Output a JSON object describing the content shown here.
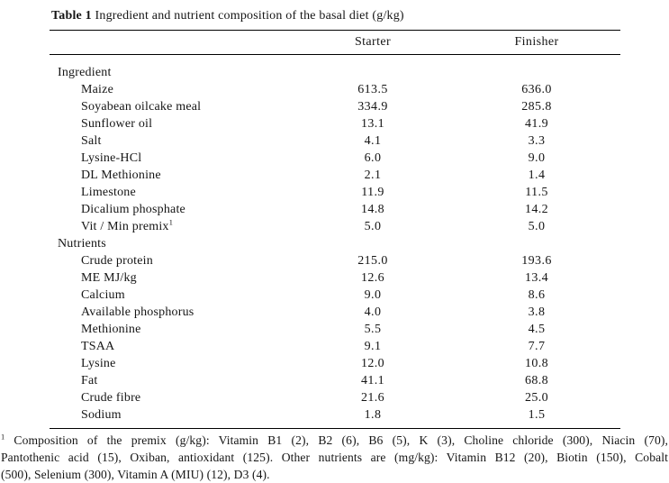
{
  "caption": {
    "label": "Table 1",
    "text": "Ingredient and nutrient composition of the basal diet (g/kg)"
  },
  "table": {
    "columns": [
      "Starter",
      "Finisher"
    ],
    "sections": [
      {
        "name": "Ingredient",
        "rows": [
          {
            "label": "Maize",
            "starter": "613.5",
            "finisher": "636.0"
          },
          {
            "label": "Soyabean oilcake meal",
            "starter": "334.9",
            "finisher": "285.8"
          },
          {
            "label": "Sunflower oil",
            "starter": "13.1",
            "finisher": "41.9"
          },
          {
            "label": "Salt",
            "starter": "4.1",
            "finisher": "3.3"
          },
          {
            "label": "Lysine-HCl",
            "starter": "6.0",
            "finisher": "9.0"
          },
          {
            "label": "DL Methionine",
            "starter": "2.1",
            "finisher": "1.4"
          },
          {
            "label": "Limestone",
            "starter": "11.9",
            "finisher": "11.5"
          },
          {
            "label": "Dicalium phosphate",
            "starter": "14.8",
            "finisher": "14.2"
          },
          {
            "label": "Vit / Min premix",
            "sup": "1",
            "starter": "5.0",
            "finisher": "5.0"
          }
        ]
      },
      {
        "name": "Nutrients",
        "rows": [
          {
            "label": "Crude protein",
            "starter": "215.0",
            "finisher": "193.6"
          },
          {
            "label": "ME MJ/kg",
            "starter": "12.6",
            "finisher": "13.4"
          },
          {
            "label": "Calcium",
            "starter": "9.0",
            "finisher": "8.6"
          },
          {
            "label": "Available phosphorus",
            "starter": "4.0",
            "finisher": "3.8"
          },
          {
            "label": "Methionine",
            "starter": "5.5",
            "finisher": "4.5"
          },
          {
            "label": "TSAA",
            "starter": "9.1",
            "finisher": "7.7"
          },
          {
            "label": "Lysine",
            "starter": "12.0",
            "finisher": "10.8"
          },
          {
            "label": "Fat",
            "starter": "41.1",
            "finisher": "68.8"
          },
          {
            "label": "Crude fibre",
            "starter": "21.6",
            "finisher": "25.0"
          },
          {
            "label": "Sodium",
            "starter": "1.8",
            "finisher": "1.5"
          }
        ]
      }
    ]
  },
  "footnote": {
    "marker": "1",
    "lines": [
      "Composition of the premix (g/kg): Vitamin B1 (2), B2 (6), B6 (5), K (3), Choline chloride (300), Niacin (70),",
      "Pantothenic acid (15), Oxiban, antioxidant (125). Other nutrients are (mg/kg): Vitamin B12 (20), Biotin (150), Cobalt",
      "(500), Selenium (300), Vitamin A (MIU) (12), D3 (4)."
    ],
    "full_text": "Composition of the premix (g/kg): Vitamin B1 (2), B2 (6), B6 (5), K (3), Choline chloride (300), Niacin (70), Pantothenic acid (15), Oxiban, antioxidant (125). Other nutrients are (mg/kg): Vitamin B12 (20), Biotin (150), Cobalt (500), Selenium (300), Vitamin A (MIU) (12), D3 (4)."
  }
}
